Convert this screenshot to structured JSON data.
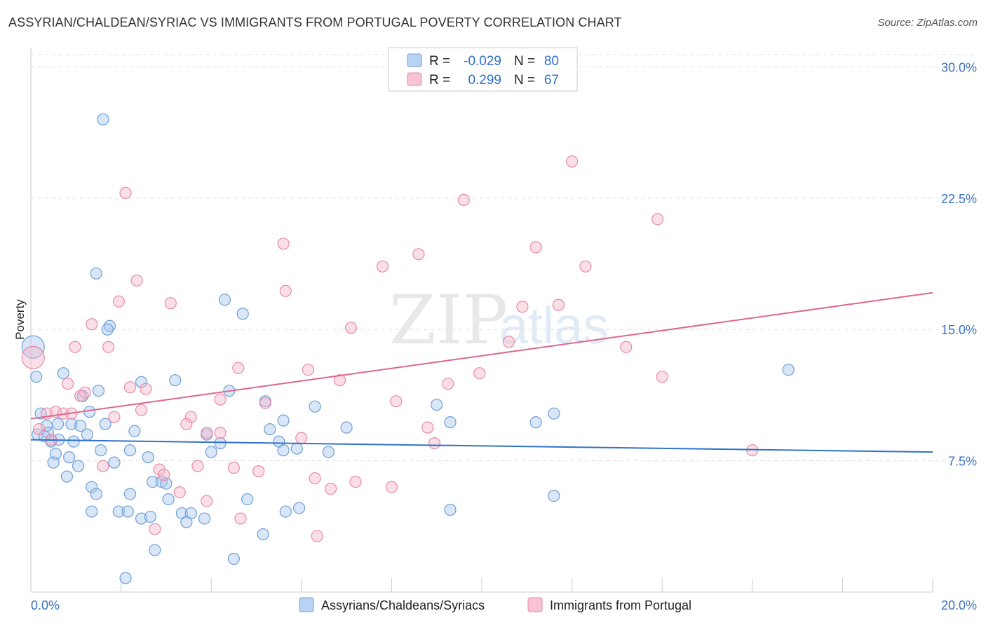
{
  "title": "ASSYRIAN/CHALDEAN/SYRIAC VS IMMIGRANTS FROM PORTUGAL POVERTY CORRELATION CHART",
  "source": "Source: ZipAtlas.com",
  "watermark": {
    "zip": "ZIP",
    "atlas": "atlas"
  },
  "legend": {
    "r_label": "R =",
    "n_label": "N =",
    "rows": [
      {
        "r": "-0.029",
        "n": "80"
      },
      {
        "r": "0.299",
        "n": "67"
      }
    ]
  },
  "colors": {
    "blue_fill": "#a9c8ef",
    "blue_stroke": "#6f9fd8",
    "blue_line": "#2f72c9",
    "pink_fill": "#f5b8ca",
    "pink_stroke": "#e88aa8",
    "pink_line": "#e0668f",
    "axis_text": "#3a72c4",
    "grid": "#dddddd"
  },
  "chart_data": {
    "type": "scatter",
    "title": "ASSYRIAN/CHALDEAN/SYRIAC VS IMMIGRANTS FROM PORTUGAL POVERTY CORRELATION CHART",
    "xlabel": "",
    "ylabel": "Poverty",
    "xlim": [
      0,
      20
    ],
    "ylim": [
      0,
      30.7
    ],
    "x_tick_labels": [
      "0.0%",
      "20.0%"
    ],
    "y_ticks": [
      7.5,
      15.0,
      22.5,
      30.0
    ],
    "y_tick_labels": [
      "7.5%",
      "15.0%",
      "22.5%",
      "30.0%"
    ],
    "grid": true,
    "legend_position": "top-center",
    "series": [
      {
        "name": "Assyrians/Chaldeans/Syriacs",
        "trend": {
          "x": [
            0,
            20
          ],
          "y": [
            8.7,
            8.0
          ]
        },
        "points": [
          {
            "x": 0.05,
            "y": 14.0
          },
          {
            "x": 0.12,
            "y": 12.3
          },
          {
            "x": 1.6,
            "y": 27.0
          },
          {
            "x": 1.45,
            "y": 18.2
          },
          {
            "x": 4.3,
            "y": 16.7
          },
          {
            "x": 4.7,
            "y": 15.9
          },
          {
            "x": 1.75,
            "y": 15.2
          },
          {
            "x": 1.7,
            "y": 15.0
          },
          {
            "x": 0.72,
            "y": 12.5
          },
          {
            "x": 2.45,
            "y": 12.0
          },
          {
            "x": 3.2,
            "y": 12.1
          },
          {
            "x": 4.4,
            "y": 11.5
          },
          {
            "x": 1.5,
            "y": 11.5
          },
          {
            "x": 1.15,
            "y": 11.2
          },
          {
            "x": 5.2,
            "y": 10.9
          },
          {
            "x": 6.3,
            "y": 10.6
          },
          {
            "x": 0.22,
            "y": 10.2
          },
          {
            "x": 1.3,
            "y": 10.3
          },
          {
            "x": 5.6,
            "y": 9.8
          },
          {
            "x": 9.0,
            "y": 10.7
          },
          {
            "x": 11.6,
            "y": 10.2
          },
          {
            "x": 11.2,
            "y": 9.7
          },
          {
            "x": 9.3,
            "y": 9.7
          },
          {
            "x": 16.8,
            "y": 12.7
          },
          {
            "x": 0.35,
            "y": 9.5
          },
          {
            "x": 0.6,
            "y": 9.6
          },
          {
            "x": 0.9,
            "y": 9.6
          },
          {
            "x": 1.1,
            "y": 9.5
          },
          {
            "x": 1.65,
            "y": 9.6
          },
          {
            "x": 0.38,
            "y": 9.1
          },
          {
            "x": 0.15,
            "y": 9.0
          },
          {
            "x": 0.3,
            "y": 8.9
          },
          {
            "x": 0.45,
            "y": 8.6
          },
          {
            "x": 0.62,
            "y": 8.7
          },
          {
            "x": 0.95,
            "y": 8.6
          },
          {
            "x": 1.25,
            "y": 9.0
          },
          {
            "x": 2.3,
            "y": 9.2
          },
          {
            "x": 5.3,
            "y": 9.3
          },
          {
            "x": 7.0,
            "y": 9.4
          },
          {
            "x": 3.9,
            "y": 9.0
          },
          {
            "x": 4.2,
            "y": 8.5
          },
          {
            "x": 5.5,
            "y": 8.6
          },
          {
            "x": 0.55,
            "y": 7.9
          },
          {
            "x": 1.55,
            "y": 8.1
          },
          {
            "x": 2.2,
            "y": 8.1
          },
          {
            "x": 4.0,
            "y": 8.0
          },
          {
            "x": 5.6,
            "y": 8.1
          },
          {
            "x": 5.9,
            "y": 8.2
          },
          {
            "x": 6.6,
            "y": 8.0
          },
          {
            "x": 0.85,
            "y": 7.7
          },
          {
            "x": 2.6,
            "y": 7.7
          },
          {
            "x": 0.5,
            "y": 7.4
          },
          {
            "x": 1.85,
            "y": 7.4
          },
          {
            "x": 1.05,
            "y": 7.2
          },
          {
            "x": 0.8,
            "y": 6.6
          },
          {
            "x": 2.7,
            "y": 6.3
          },
          {
            "x": 2.9,
            "y": 6.3
          },
          {
            "x": 1.35,
            "y": 6.0
          },
          {
            "x": 1.45,
            "y": 5.6
          },
          {
            "x": 2.2,
            "y": 5.6
          },
          {
            "x": 3.05,
            "y": 5.3
          },
          {
            "x": 4.8,
            "y": 5.3
          },
          {
            "x": 11.6,
            "y": 5.5
          },
          {
            "x": 1.35,
            "y": 4.6
          },
          {
            "x": 1.95,
            "y": 4.6
          },
          {
            "x": 2.15,
            "y": 4.6
          },
          {
            "x": 2.45,
            "y": 4.2
          },
          {
            "x": 2.65,
            "y": 4.3
          },
          {
            "x": 3.35,
            "y": 4.5
          },
          {
            "x": 3.55,
            "y": 4.5
          },
          {
            "x": 3.45,
            "y": 4.0
          },
          {
            "x": 3.85,
            "y": 4.2
          },
          {
            "x": 5.65,
            "y": 4.6
          },
          {
            "x": 5.95,
            "y": 4.8
          },
          {
            "x": 9.3,
            "y": 4.7
          },
          {
            "x": 5.15,
            "y": 3.3
          },
          {
            "x": 2.75,
            "y": 2.4
          },
          {
            "x": 4.5,
            "y": 1.9
          },
          {
            "x": 2.1,
            "y": 0.8
          },
          {
            "x": 3.0,
            "y": 6.2
          }
        ]
      },
      {
        "name": "Immigrants from Portugal",
        "trend": {
          "x": [
            0,
            20
          ],
          "y": [
            9.9,
            17.1
          ]
        },
        "points": [
          {
            "x": 0.05,
            "y": 13.4
          },
          {
            "x": 12.0,
            "y": 24.6
          },
          {
            "x": 2.1,
            "y": 22.8
          },
          {
            "x": 9.6,
            "y": 22.4
          },
          {
            "x": 13.9,
            "y": 21.3
          },
          {
            "x": 5.6,
            "y": 19.9
          },
          {
            "x": 8.6,
            "y": 19.3
          },
          {
            "x": 11.2,
            "y": 19.7
          },
          {
            "x": 7.8,
            "y": 18.6
          },
          {
            "x": 12.3,
            "y": 18.6
          },
          {
            "x": 2.35,
            "y": 17.8
          },
          {
            "x": 5.65,
            "y": 17.2
          },
          {
            "x": 1.95,
            "y": 16.6
          },
          {
            "x": 3.1,
            "y": 16.5
          },
          {
            "x": 10.9,
            "y": 16.3
          },
          {
            "x": 11.7,
            "y": 16.4
          },
          {
            "x": 1.35,
            "y": 15.3
          },
          {
            "x": 7.1,
            "y": 15.1
          },
          {
            "x": 10.6,
            "y": 14.3
          },
          {
            "x": 13.2,
            "y": 14.0
          },
          {
            "x": 0.98,
            "y": 14.0
          },
          {
            "x": 1.72,
            "y": 14.0
          },
          {
            "x": 4.6,
            "y": 12.8
          },
          {
            "x": 6.15,
            "y": 12.7
          },
          {
            "x": 9.95,
            "y": 12.5
          },
          {
            "x": 14.0,
            "y": 12.3
          },
          {
            "x": 6.85,
            "y": 12.1
          },
          {
            "x": 9.25,
            "y": 11.9
          },
          {
            "x": 0.82,
            "y": 11.9
          },
          {
            "x": 2.2,
            "y": 11.7
          },
          {
            "x": 2.55,
            "y": 11.6
          },
          {
            "x": 1.2,
            "y": 11.4
          },
          {
            "x": 1.1,
            "y": 11.2
          },
          {
            "x": 4.2,
            "y": 11.0
          },
          {
            "x": 5.2,
            "y": 10.8
          },
          {
            "x": 8.1,
            "y": 10.9
          },
          {
            "x": 2.45,
            "y": 10.4
          },
          {
            "x": 0.35,
            "y": 10.2
          },
          {
            "x": 0.55,
            "y": 10.3
          },
          {
            "x": 0.72,
            "y": 10.2
          },
          {
            "x": 1.85,
            "y": 10.0
          },
          {
            "x": 3.55,
            "y": 10.0
          },
          {
            "x": 3.45,
            "y": 9.6
          },
          {
            "x": 8.8,
            "y": 9.4
          },
          {
            "x": 0.18,
            "y": 9.3
          },
          {
            "x": 0.45,
            "y": 8.7
          },
          {
            "x": 3.9,
            "y": 9.1
          },
          {
            "x": 4.2,
            "y": 9.1
          },
          {
            "x": 6.0,
            "y": 8.8
          },
          {
            "x": 8.95,
            "y": 8.5
          },
          {
            "x": 16.0,
            "y": 8.1
          },
          {
            "x": 1.6,
            "y": 7.2
          },
          {
            "x": 3.7,
            "y": 7.2
          },
          {
            "x": 4.5,
            "y": 7.1
          },
          {
            "x": 5.05,
            "y": 6.9
          },
          {
            "x": 2.85,
            "y": 7.0
          },
          {
            "x": 2.95,
            "y": 6.7
          },
          {
            "x": 6.3,
            "y": 6.5
          },
          {
            "x": 7.2,
            "y": 6.3
          },
          {
            "x": 8.0,
            "y": 6.0
          },
          {
            "x": 6.65,
            "y": 5.9
          },
          {
            "x": 3.3,
            "y": 5.7
          },
          {
            "x": 3.9,
            "y": 5.2
          },
          {
            "x": 4.65,
            "y": 4.2
          },
          {
            "x": 2.75,
            "y": 3.6
          },
          {
            "x": 6.35,
            "y": 3.2
          },
          {
            "x": 0.9,
            "y": 10.2
          }
        ]
      }
    ]
  }
}
